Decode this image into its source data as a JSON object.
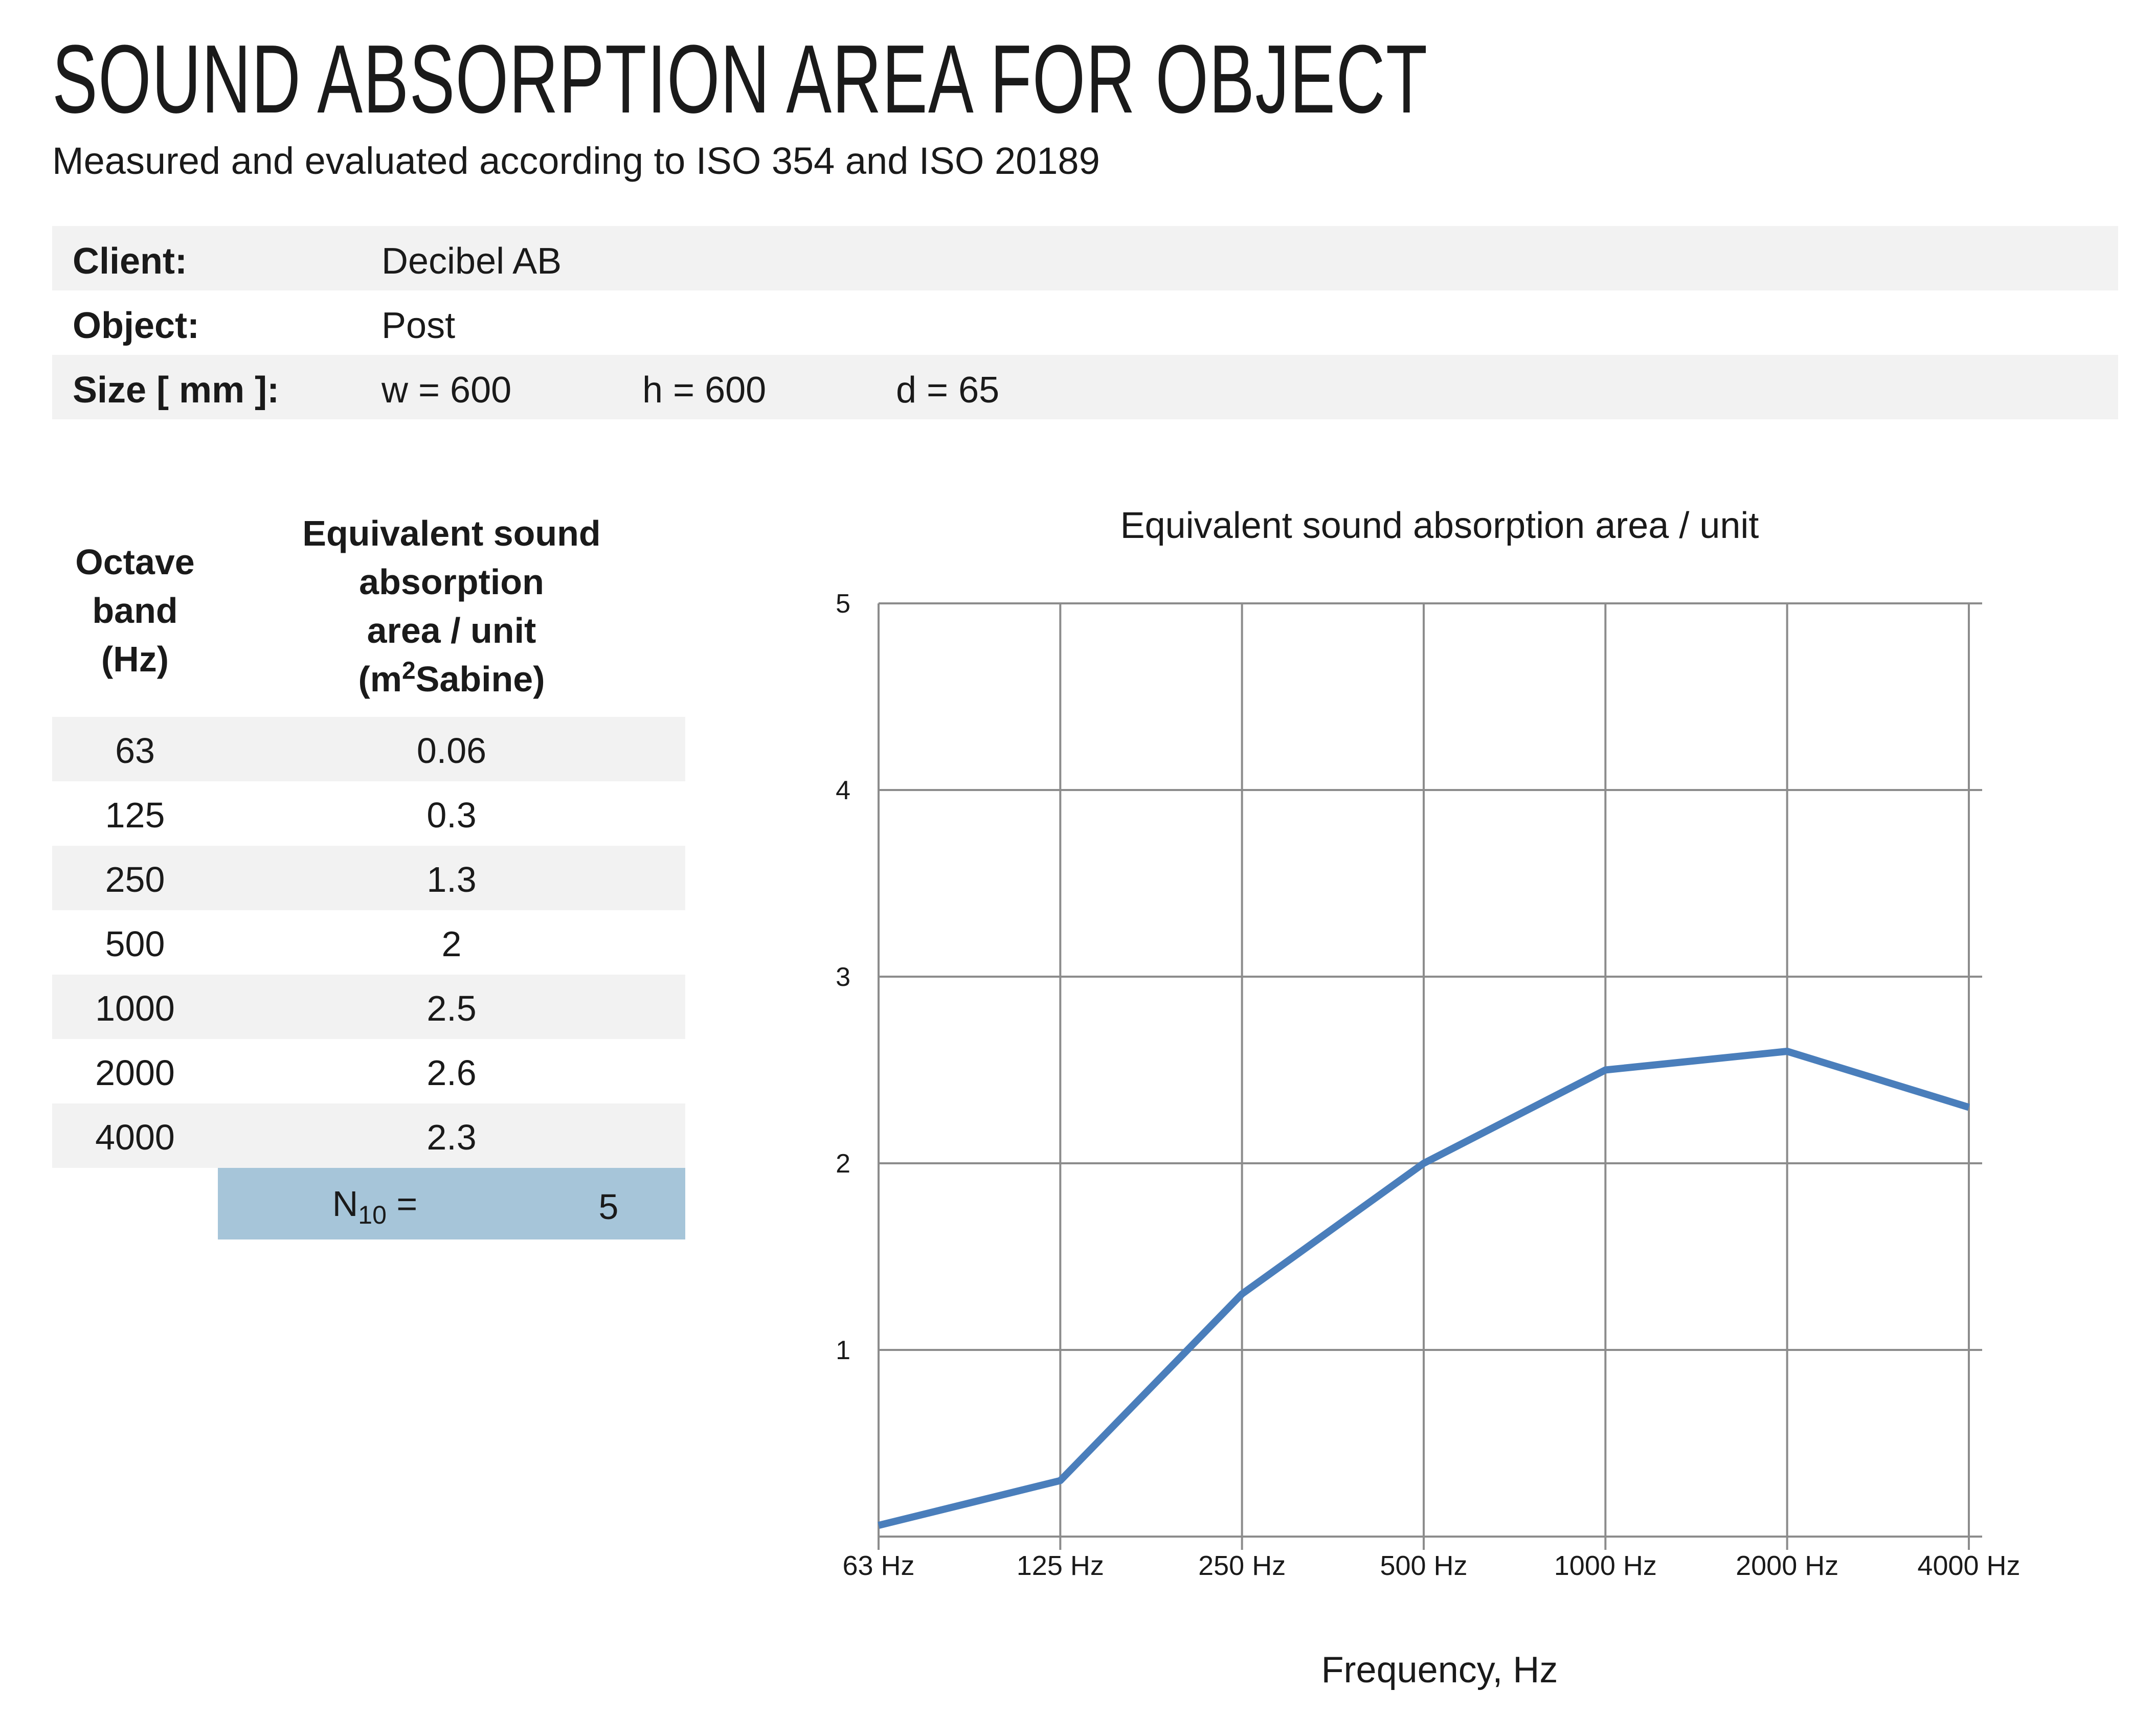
{
  "header": {
    "title": "SOUND ABSORPTION AREA FOR OBJECT",
    "subtitle": "Measured and evaluated according to ISO 354 and ISO 20189"
  },
  "info": {
    "client_label": "Client:",
    "client_value": "Decibel AB",
    "object_label": "Object:",
    "object_value": "Post",
    "size_label": "Size [ mm ]:",
    "size_w": "w = 600",
    "size_h": "h = 600",
    "size_d": "d = 65"
  },
  "table": {
    "col1_header": [
      "Octave",
      "band",
      "(Hz)"
    ],
    "col2_header": [
      "Equivalent sound",
      "absorption",
      "area / unit"
    ],
    "col2_unit_pre": "(m",
    "col2_unit_sup": "2",
    "col2_unit_post": "Sabine)",
    "rows": [
      {
        "band": "63",
        "value": "0.06"
      },
      {
        "band": "125",
        "value": "0.3"
      },
      {
        "band": "250",
        "value": "1.3"
      },
      {
        "band": "500",
        "value": "2"
      },
      {
        "band": "1000",
        "value": "2.5"
      },
      {
        "band": "2000",
        "value": "2.6"
      },
      {
        "band": "4000",
        "value": "2.3"
      }
    ],
    "n10_label": "N",
    "n10_sub": "10",
    "n10_eq": " =",
    "n10_value": "5"
  },
  "chart_data": {
    "type": "line",
    "title": "Equivalent sound absorption area / unit",
    "xlabel": "Frequency, Hz",
    "ylabel": "",
    "categories": [
      "63 Hz",
      "125 Hz",
      "250 Hz",
      "500 Hz",
      "1000 Hz",
      "2000 Hz",
      "4000 Hz"
    ],
    "series": [
      {
        "values": [
          0.06,
          0.3,
          1.3,
          2,
          2.5,
          2.6,
          2.3
        ]
      }
    ],
    "ylim": [
      0,
      5
    ],
    "yticks": [
      "1",
      "2",
      "3",
      "4",
      "5"
    ],
    "grid": true,
    "line_color": "#4a7ebb",
    "grid_color": "#8c8c8c"
  }
}
